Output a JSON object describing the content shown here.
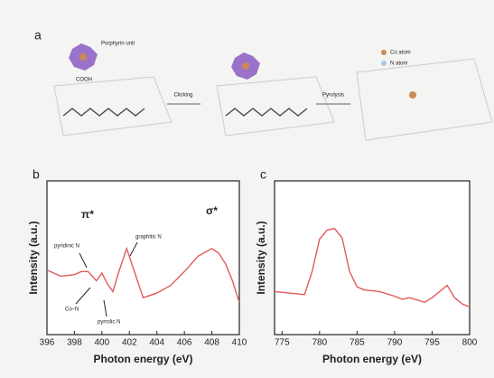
{
  "diagram": {
    "panel_label": "a",
    "porphyrin_label": "Porphyrin unit",
    "cooh_label": "COOH",
    "step1": "Clicking",
    "step2": "Pyrolysis",
    "legend_co": "Co atom",
    "legend_n": "N atom"
  },
  "chart_data": [
    {
      "type": "line",
      "panel_label": "b",
      "x_label": "Photon energy (eV)",
      "y_label": "Intensity (a.u.)",
      "x": [
        396,
        397,
        398,
        398.5,
        399,
        399.6,
        400,
        400.4,
        400.8,
        401.2,
        401.8,
        402.4,
        403,
        404,
        405,
        406,
        407,
        408,
        408.5,
        409,
        409.5,
        410
      ],
      "values": [
        0.42,
        0.38,
        0.39,
        0.41,
        0.41,
        0.35,
        0.4,
        0.33,
        0.28,
        0.4,
        0.56,
        0.4,
        0.24,
        0.27,
        0.32,
        0.41,
        0.51,
        0.56,
        0.53,
        0.46,
        0.35,
        0.21
      ],
      "color": "#e05a5a",
      "xlim": [
        396,
        410
      ],
      "ylim": [
        0,
        1
      ],
      "xticks": [
        396,
        398,
        400,
        402,
        404,
        406,
        408,
        410
      ],
      "annotations": [
        "π*",
        "σ*",
        "pyridinic N",
        "graphitic N",
        "Co–N",
        "pyrrolic N"
      ]
    },
    {
      "type": "line",
      "panel_label": "c",
      "x_label": "Photon energy (eV)",
      "y_label": "Intensity (a.u.)",
      "x": [
        774,
        776,
        778,
        779,
        780,
        781,
        782,
        783,
        784,
        785,
        786,
        788,
        790,
        791,
        792,
        794,
        795,
        796,
        797,
        798,
        799,
        800
      ],
      "values": [
        0.28,
        0.27,
        0.26,
        0.41,
        0.62,
        0.68,
        0.69,
        0.63,
        0.41,
        0.31,
        0.29,
        0.28,
        0.25,
        0.23,
        0.24,
        0.21,
        0.24,
        0.28,
        0.32,
        0.24,
        0.2,
        0.18
      ],
      "color": "#e05a5a",
      "xlim": [
        774,
        800
      ],
      "ylim": [
        0,
        1
      ],
      "xticks": [
        775,
        780,
        785,
        790,
        795,
        800
      ]
    }
  ]
}
